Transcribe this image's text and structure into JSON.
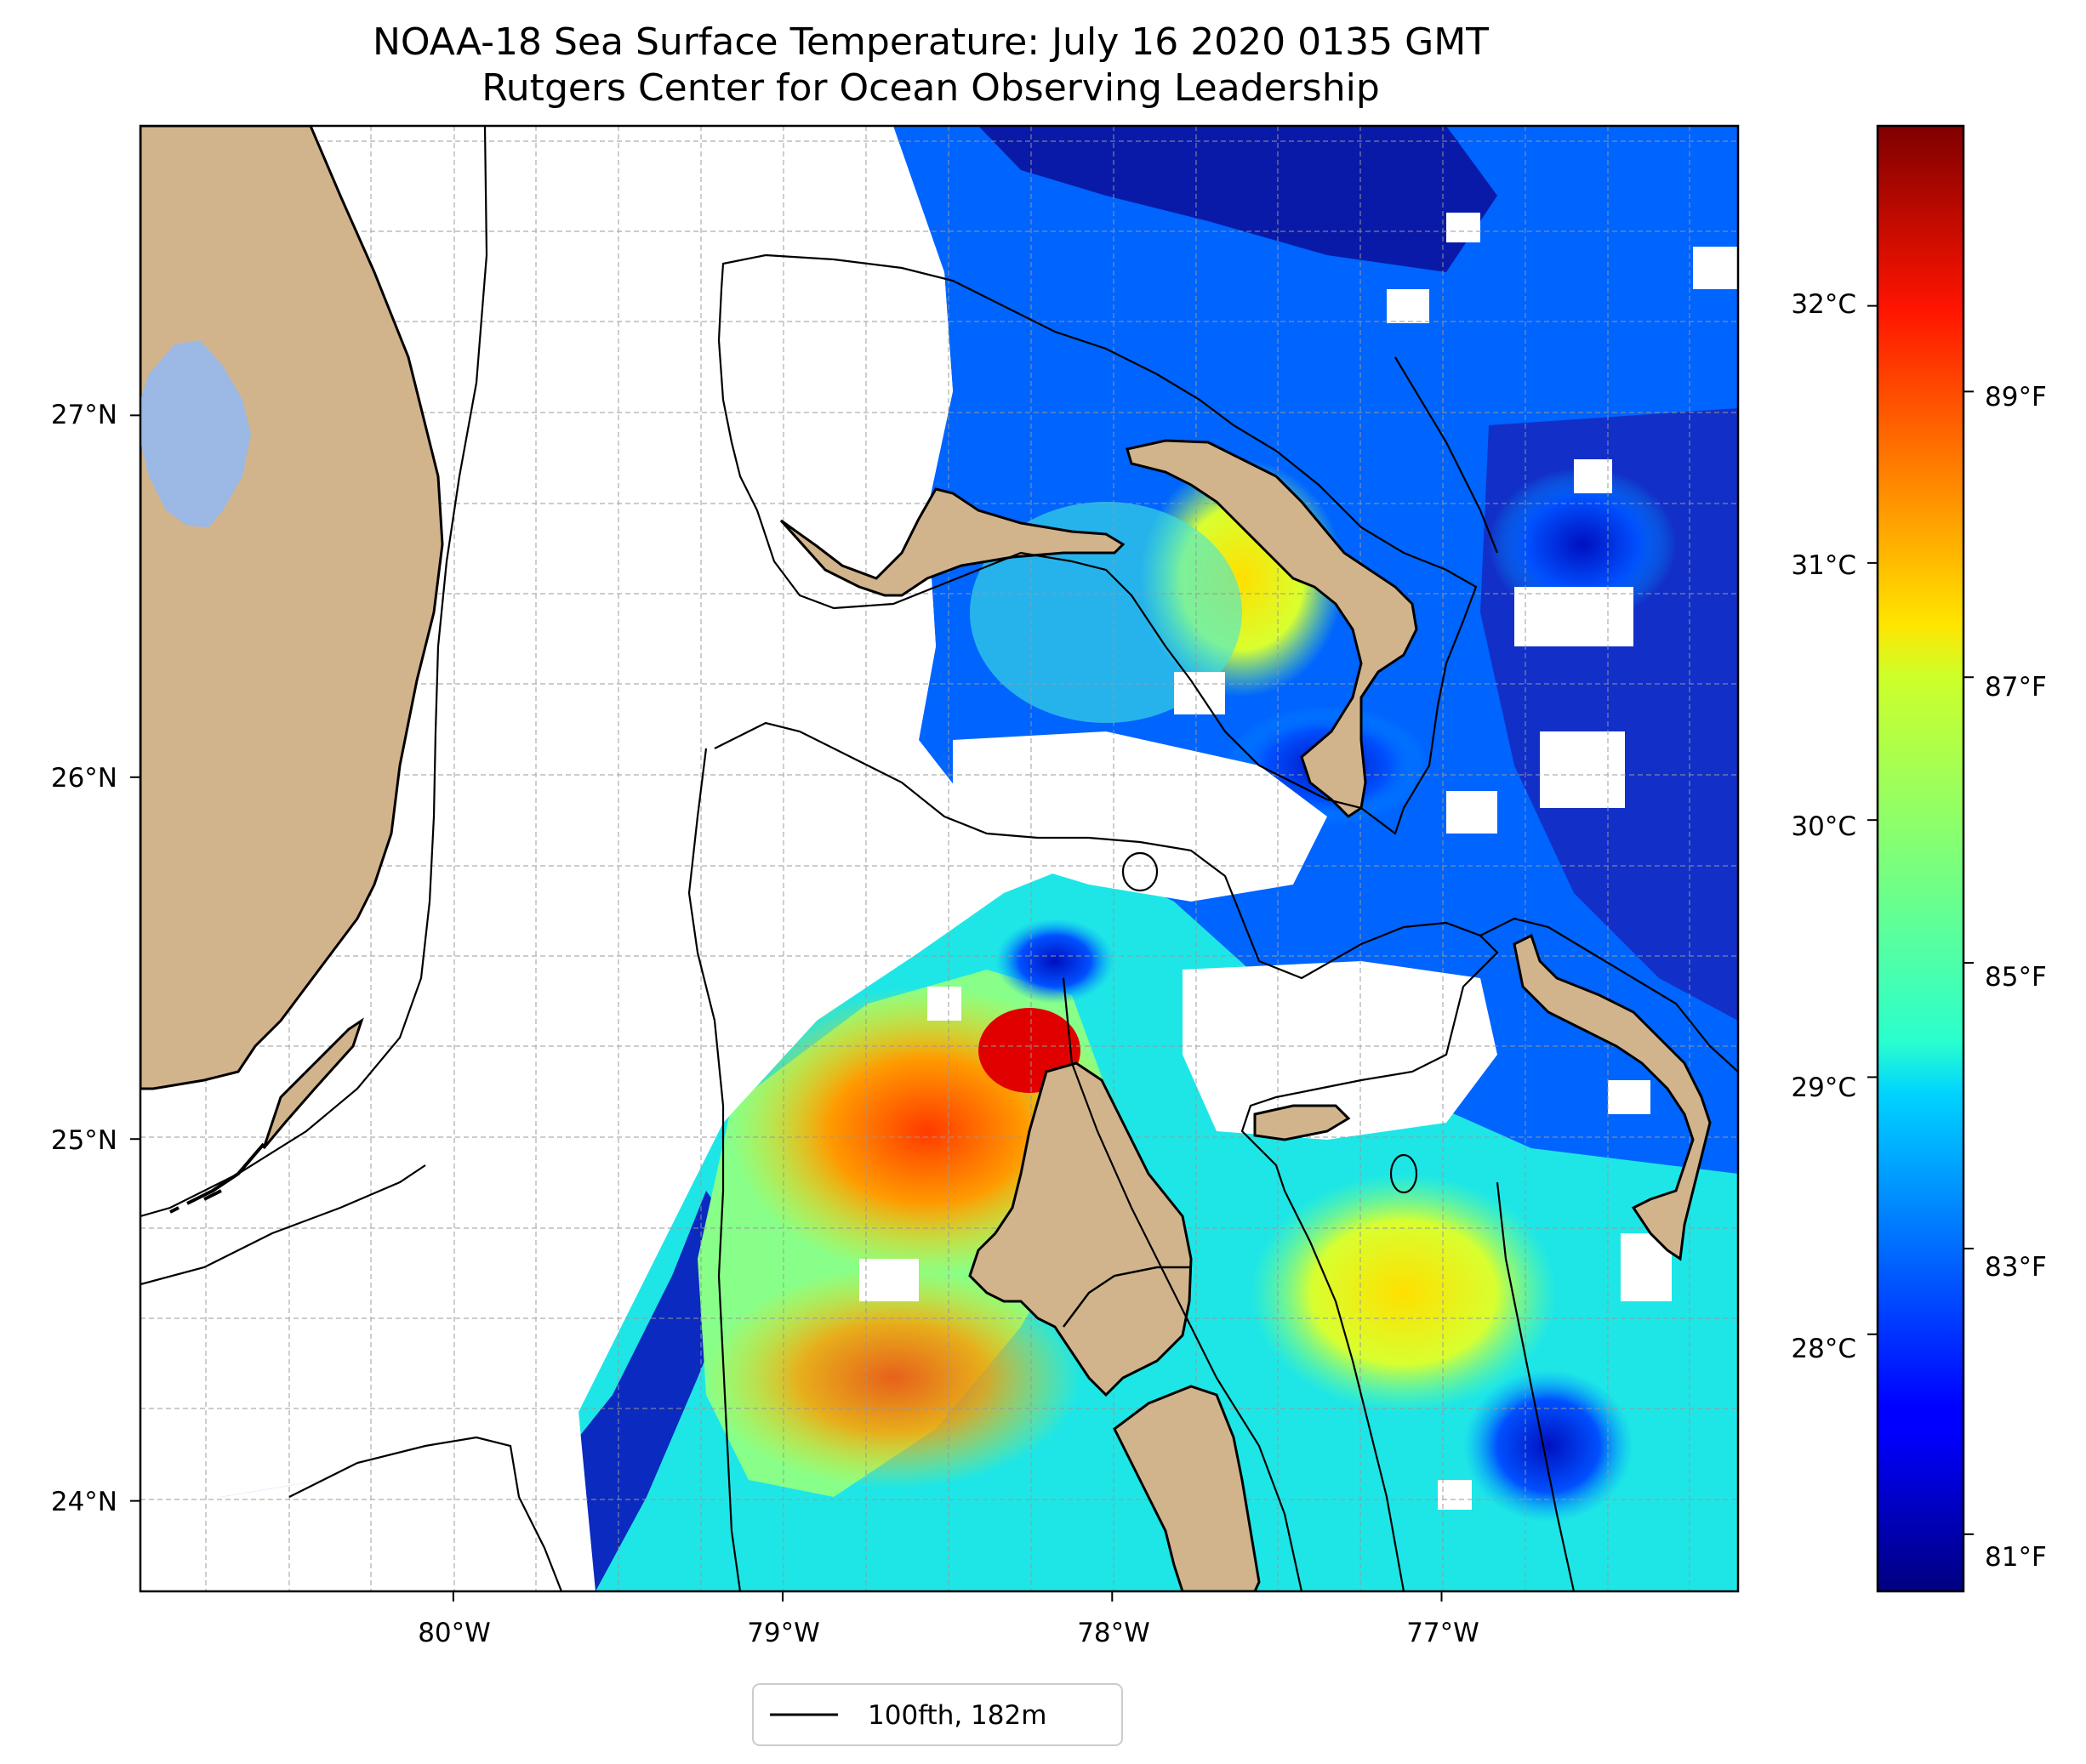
{
  "title": {
    "line1": "NOAA-18 Sea Surface Temperature: July 16 2020 0135 GMT",
    "line2": "Rutgers Center for Ocean Observing Leadership"
  },
  "map": {
    "lon_range": [
      -80.95,
      -76.1
    ],
    "lat_range": [
      23.75,
      27.8
    ],
    "lon_ticks": [
      {
        "value": -80,
        "label": "80°W"
      },
      {
        "value": -79,
        "label": "79°W"
      },
      {
        "value": -78,
        "label": "78°W"
      },
      {
        "value": -77,
        "label": "77°W"
      }
    ],
    "lat_ticks": [
      {
        "value": 27,
        "label": "27°N"
      },
      {
        "value": 26,
        "label": "26°N"
      },
      {
        "value": 25,
        "label": "25°N"
      },
      {
        "value": 24,
        "label": "24°N"
      }
    ],
    "grid": true,
    "colors": {
      "land": "#d2b48c",
      "lake": "#9cb8e4",
      "no_data": "#ffffff",
      "contour": "#000000"
    }
  },
  "colorbar": {
    "colormap": "jet",
    "range_celsius": [
      27.0,
      32.7
    ],
    "celsius_ticks": [
      {
        "value": 28,
        "label": "28°C"
      },
      {
        "value": 29,
        "label": "29°C"
      },
      {
        "value": 30,
        "label": "30°C"
      },
      {
        "value": 31,
        "label": "31°C"
      },
      {
        "value": 32,
        "label": "32°C"
      }
    ],
    "fahrenheit_ticks": [
      {
        "value": 81,
        "label": "81°F"
      },
      {
        "value": 83,
        "label": "83°F"
      },
      {
        "value": 85,
        "label": "85°F"
      },
      {
        "value": 87,
        "label": "87°F"
      },
      {
        "value": 89,
        "label": "89°F"
      }
    ]
  },
  "legend": {
    "label": "100fth, 182m",
    "placement": "bottom-center"
  }
}
